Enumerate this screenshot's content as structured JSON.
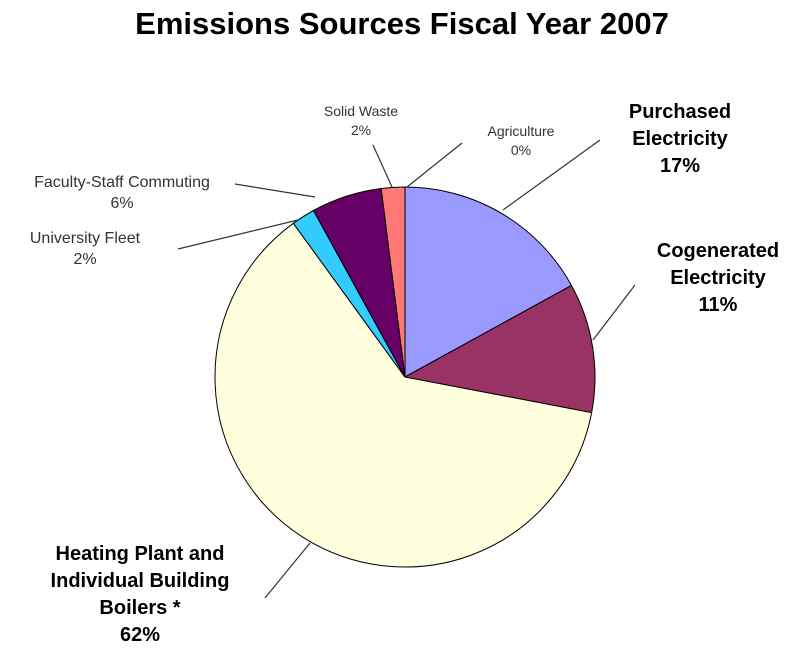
{
  "chart_data": {
    "type": "pie",
    "title": "Emissions Sources Fiscal Year 2007",
    "slices": [
      {
        "name": "Purchased Electricity",
        "lines": [
          "Purchased",
          "Electricity"
        ],
        "value": 17,
        "label": "17%",
        "color": "#9999ff",
        "bold": true
      },
      {
        "name": "Cogenerated Electricity",
        "lines": [
          "Cogenerated",
          "Electricity"
        ],
        "value": 11,
        "label": "11%",
        "color": "#993366",
        "bold": true
      },
      {
        "name": "Heating Plant and Individual Building Boilers *",
        "lines": [
          "Heating Plant and",
          "Individual Building",
          "Boilers *"
        ],
        "value": 62,
        "label": "62%",
        "color": "#ffffdd",
        "bold": true
      },
      {
        "name": "University Fleet",
        "lines": [
          "University Fleet"
        ],
        "value": 2,
        "label": "2%",
        "color": "#33ccff",
        "bold": false
      },
      {
        "name": "Faculty-Staff Commuting",
        "lines": [
          "Faculty-Staff Commuting"
        ],
        "value": 6,
        "label": "6%",
        "color": "#660066",
        "bold": false
      },
      {
        "name": "Solid Waste",
        "lines": [
          "Solid Waste"
        ],
        "value": 2,
        "label": "2%",
        "color": "#ff7777",
        "bold": false
      },
      {
        "name": "Agriculture",
        "lines": [
          "Agriculture"
        ],
        "value": 0,
        "label": "0%",
        "color": "#cccccc",
        "bold": false
      }
    ]
  }
}
